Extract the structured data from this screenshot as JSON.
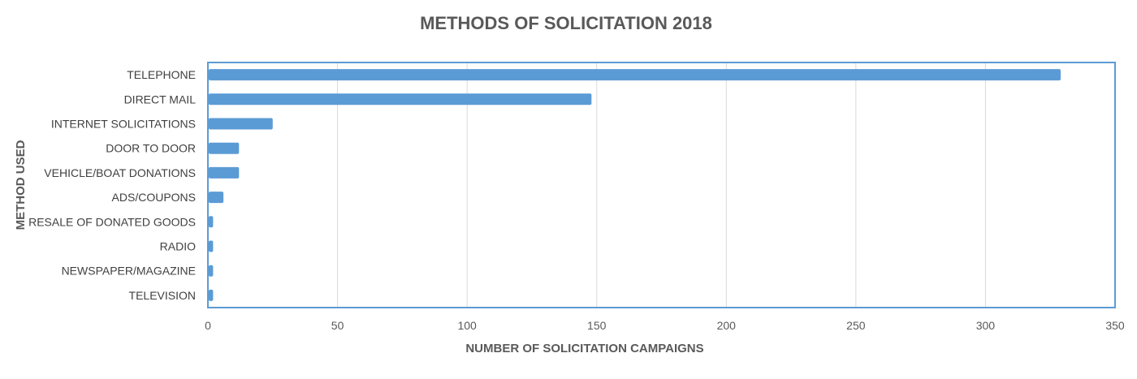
{
  "chart_data": {
    "type": "bar",
    "orientation": "horizontal",
    "title": "METHODS OF SOLICITATION 2018",
    "xlabel": "NUMBER OF SOLICITATION CAMPAIGNS",
    "ylabel": "METHOD USED",
    "categories": [
      "TELEPHONE",
      "DIRECT MAIL",
      "INTERNET SOLICITATIONS",
      "DOOR TO DOOR",
      "VEHICLE/BOAT DONATIONS",
      "ADS/COUPONS",
      "RESALE OF DONATED GOODS",
      "RADIO",
      "NEWSPAPER/MAGAZINE",
      "TELEVISION"
    ],
    "values": [
      329,
      148,
      25,
      12,
      12,
      6,
      2,
      2,
      2,
      2
    ],
    "xlim": [
      0,
      350
    ],
    "xticks": [
      0,
      50,
      100,
      150,
      200,
      250,
      300,
      350
    ],
    "grid": "vertical",
    "legend": "none",
    "bar_color": "#5b9bd5"
  }
}
